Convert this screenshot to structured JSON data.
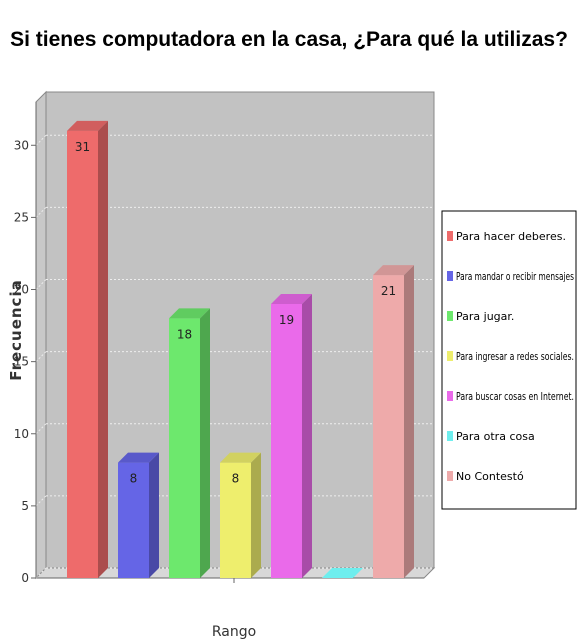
{
  "chart_data": {
    "type": "bar",
    "title": "Si tienes computadora en la casa, ¿Para qué la utilizas?",
    "xlabel": "Rango",
    "ylabel": "Frecuencia",
    "ylim": [
      0,
      33
    ],
    "yticks": [
      0,
      5,
      10,
      15,
      20,
      25,
      30
    ],
    "grid": true,
    "legend_position": "right",
    "series": [
      {
        "name": "Para hacer deberes.",
        "value": 31,
        "color": "#ee6b6b"
      },
      {
        "name": "Para mandar o recibir mensajes",
        "value": 8,
        "color": "#6565e6"
      },
      {
        "name": "Para jugar.",
        "value": 18,
        "color": "#6de86d"
      },
      {
        "name": "Para ingresar a redes sociales.",
        "value": 8,
        "color": "#eeee6d"
      },
      {
        "name": "Para buscar cosas en Internet.",
        "value": 19,
        "color": "#ea6aea"
      },
      {
        "name": "Para otra cosa",
        "value": 0,
        "color": "#6eeeee"
      },
      {
        "name": "No Contestó",
        "value": 21,
        "color": "#eeaaaa"
      }
    ]
  }
}
